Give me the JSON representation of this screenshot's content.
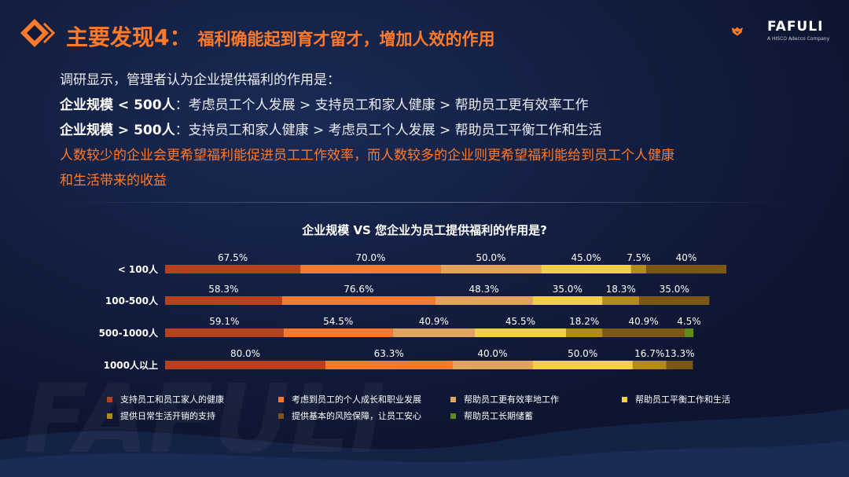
{
  "header": {
    "title_main": "主要发现4：",
    "title_sub": "福利确能起到育才留才，增加人效的作用"
  },
  "logo": {
    "name": "FAFULI",
    "tagline": "A HISCO Adecco Company",
    "brand_color": "#ff7a2a"
  },
  "findings": {
    "intro": "调研显示，管理者认为企业提供福利的作用是：",
    "small_label": "企业规模 < 500人",
    "small_text": "：考虑员工个人发展 > 支持员工和家人健康 > 帮助员工更有效率工作",
    "large_label": "企业规模 > 500人",
    "large_text": "：支持员工和家人健康 > 考虑员工个人发展 > 帮助员工平衡工作和生活",
    "conclusion_line1": "人数较少的企业会更希望福利能促进员工工作效率，而人数较多的企业则更希望福利能给到员工个人健康",
    "conclusion_line2": "和生活带来的收益"
  },
  "chart_data": {
    "type": "bar",
    "orientation": "horizontal",
    "stacked": true,
    "title": "企业规模 VS 您企业为员工提供福利的作用是?",
    "categories": [
      "< 100人",
      "100-500人",
      "500-1000人",
      "1000人以上"
    ],
    "series": [
      {
        "name": "支持员工和员工家人的健康",
        "color": "#b6411f",
        "values": [
          67.5,
          58.3,
          59.1,
          80.0
        ],
        "labels": [
          "67.5%",
          "58.3%",
          "59.1%",
          "80.0%"
        ]
      },
      {
        "name": "考虑到员工的个人成长和职业发展",
        "color": "#f5792e",
        "values": [
          70.0,
          76.6,
          54.5,
          63.3
        ],
        "labels": [
          "70.0%",
          "76.6%",
          "54.5%",
          "63.3%"
        ]
      },
      {
        "name": "帮助员工更有效率地工作",
        "color": "#e2a361",
        "values": [
          50.0,
          48.3,
          40.9,
          40.0
        ],
        "labels": [
          "50.0%",
          "48.3%",
          "40.9%",
          "40.0%"
        ]
      },
      {
        "name": "帮助员工平衡工作和生活",
        "color": "#f2cf4a",
        "values": [
          45.0,
          35.0,
          45.5,
          50.0
        ],
        "labels": [
          "45.0%",
          "35.0%",
          "45.5%",
          "50.0%"
        ]
      },
      {
        "name": "提供日常生活开销的支持",
        "color": "#b38b18",
        "values": [
          7.5,
          18.3,
          18.2,
          16.7
        ],
        "labels": [
          "7.5%",
          "18.3%",
          "18.2%",
          "16.7%"
        ]
      },
      {
        "name": "提供基本的风险保障，让员工安心",
        "color": "#7a5716",
        "values": [
          40.0,
          35.0,
          40.9,
          13.3
        ],
        "labels": [
          "40%",
          "35.0%",
          "40.9%",
          "13.3%"
        ]
      },
      {
        "name": "帮助员工长期储蓄",
        "color": "#5f8a1c",
        "values": [
          0,
          0,
          4.5,
          0
        ],
        "labels": [
          "",
          "",
          "4.5%",
          ""
        ]
      }
    ],
    "legend_position": "bottom",
    "grid": false
  }
}
